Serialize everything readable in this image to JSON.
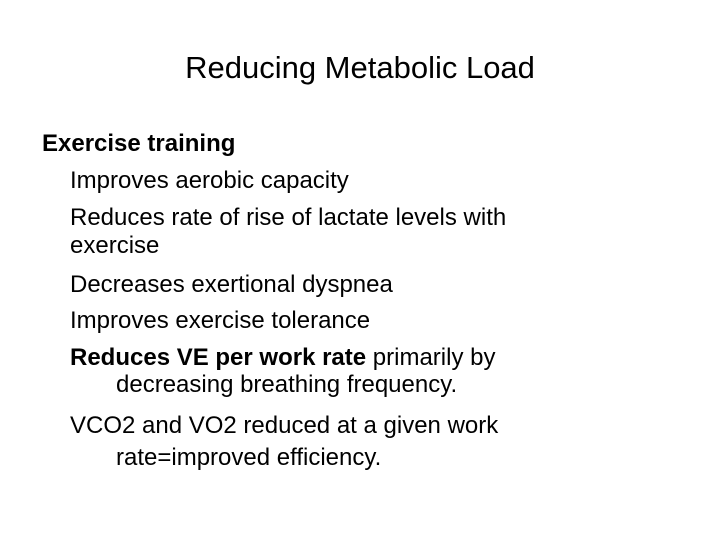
{
  "title": "Reducing Metabolic Load",
  "heading": "Exercise training",
  "items": [
    {
      "lines": [
        "Improves aerobic capacity"
      ]
    },
    {
      "lines": [
        "Reduces rate of rise of lactate levels with",
        "exercise"
      ]
    },
    {
      "lines": [
        "Decreases exertional dyspnea"
      ]
    },
    {
      "lines": [
        "Improves exercise tolerance"
      ]
    },
    {
      "bold": "Reduces VE per work rate",
      "lines": [
        "primarily by",
        "decreasing breathing frequency."
      ]
    },
    {
      "lines": [
        "VCO2 and VO2 reduced at a given work",
        "rate=improved efficiency."
      ]
    }
  ]
}
